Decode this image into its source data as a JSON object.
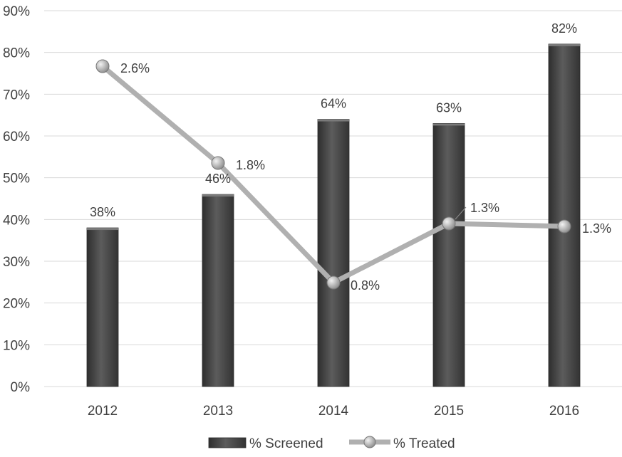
{
  "chart_data": {
    "type": "bar",
    "categories": [
      "2012",
      "2013",
      "2014",
      "2015",
      "2016"
    ],
    "ylim": [
      0,
      90
    ],
    "yticks": [
      "0%",
      "10%",
      "20%",
      "30%",
      "40%",
      "50%",
      "60%",
      "70%",
      "80%",
      "90%"
    ],
    "grid": true,
    "legend_position": "bottom",
    "series": [
      {
        "name": "% Screened",
        "kind": "bar",
        "values": [
          38,
          46,
          64,
          63,
          82
        ],
        "labels": [
          "38%",
          "46%",
          "64%",
          "63%",
          "82%"
        ],
        "color": "#4a4a4a"
      },
      {
        "name": "% Treated",
        "kind": "line",
        "values": [
          2.6,
          1.8,
          0.8,
          1.3,
          1.3
        ],
        "labels": [
          "2.6%",
          "1.8%",
          "0.8%",
          "1.3%",
          "1.3%"
        ],
        "color": "#b0b0b0"
      }
    ],
    "colors": {
      "grid": "#d9d9d9",
      "text": "#404040"
    }
  }
}
